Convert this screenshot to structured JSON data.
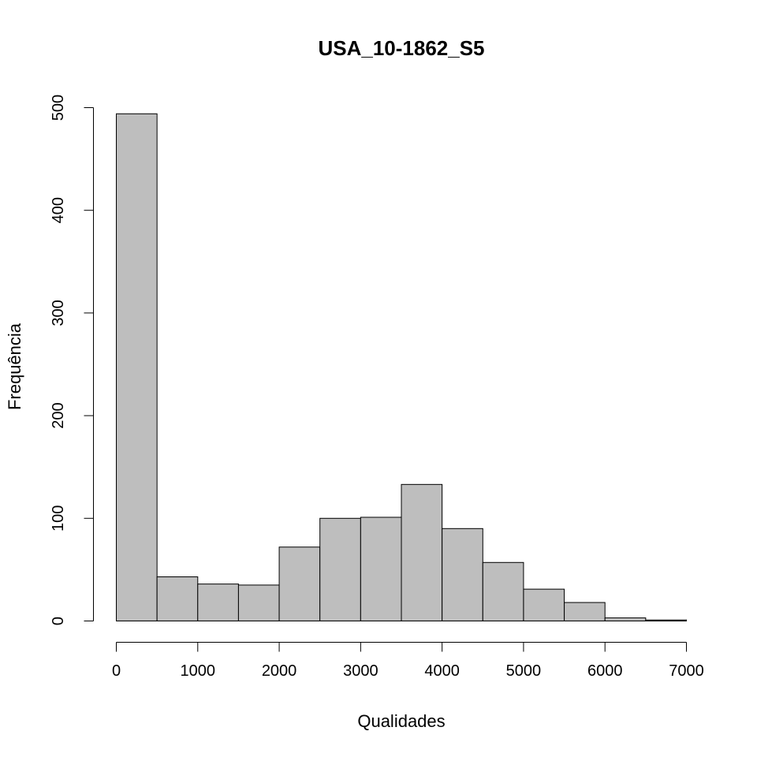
{
  "chart_data": {
    "type": "bar",
    "title": "USA_10-1862_S5",
    "xlabel": "Qualidades",
    "ylabel": "Frequência",
    "bin_edges": [
      0,
      500,
      1000,
      1500,
      2000,
      2500,
      3000,
      3500,
      4000,
      4500,
      5000,
      5500,
      6000,
      6500,
      7000
    ],
    "values": [
      494,
      43,
      36,
      35,
      72,
      100,
      101,
      133,
      90,
      57,
      31,
      18,
      3,
      1
    ],
    "xlim": [
      0,
      7000
    ],
    "ylim": [
      0,
      500
    ],
    "x_ticks": [
      0,
      1000,
      2000,
      3000,
      4000,
      5000,
      6000,
      7000
    ],
    "x_tick_labels": [
      "0",
      "1000",
      "2000",
      "3000",
      "4000",
      "5000",
      "6000",
      "7000"
    ],
    "y_ticks": [
      0,
      100,
      200,
      300,
      400,
      500
    ],
    "y_tick_labels": [
      "0",
      "100",
      "200",
      "300",
      "400",
      "500"
    ],
    "bar_color": "#bebebe",
    "grid": false,
    "legend": "none"
  }
}
